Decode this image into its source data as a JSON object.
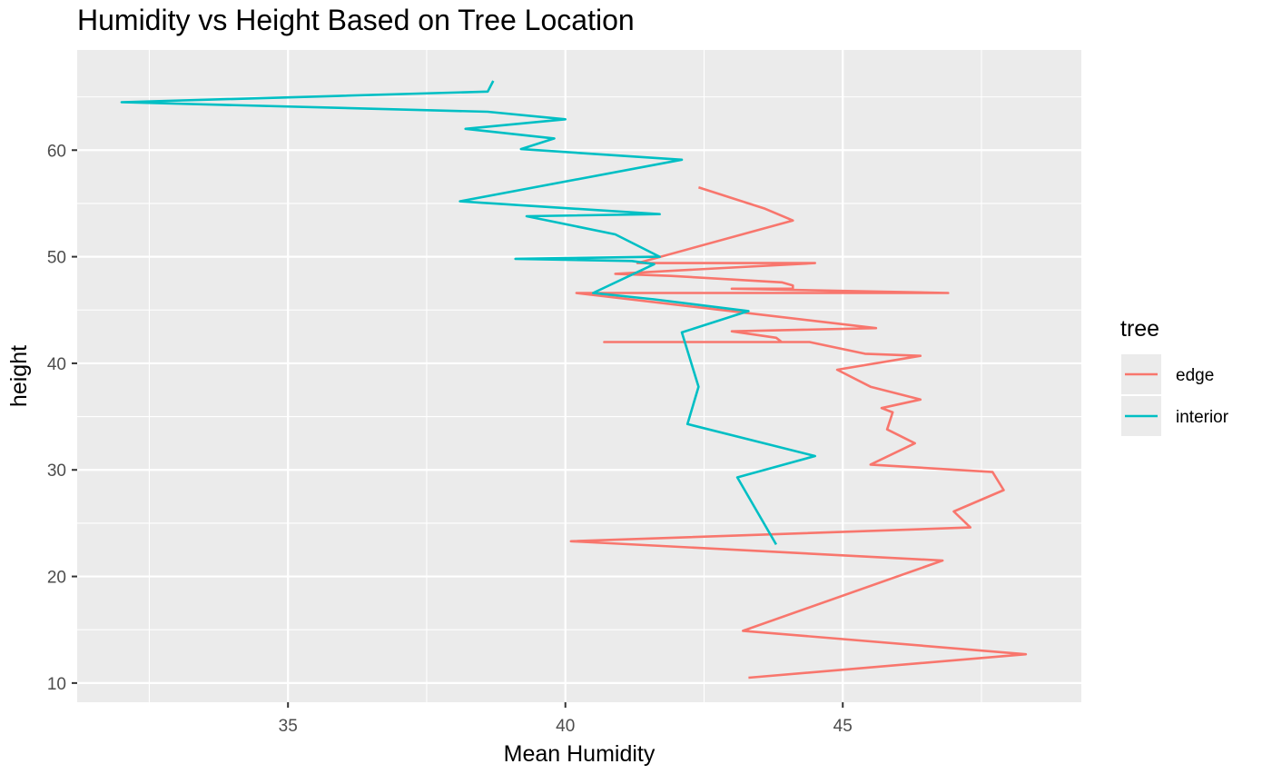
{
  "chart_data": {
    "type": "line",
    "title": "Humidity vs Height Based on Tree Location",
    "xlabel": "Mean Humidity",
    "ylabel": "height",
    "xlim": [
      31.2,
      49.3
    ],
    "ylim": [
      8.2,
      69.4
    ],
    "x_ticks": [
      35,
      40,
      45
    ],
    "x_tick_labels": [
      "35",
      "40",
      "45"
    ],
    "y_ticks": [
      10,
      20,
      30,
      40,
      50,
      60
    ],
    "y_tick_labels": [
      "10",
      "20",
      "30",
      "40",
      "50",
      "60"
    ],
    "grid": true,
    "legend": {
      "title": "tree",
      "placement": "right"
    },
    "series": [
      {
        "name": "edge",
        "color": "#F8766D",
        "points": [
          [
            43.3,
            10.5
          ],
          [
            48.3,
            12.7
          ],
          [
            43.2,
            14.9
          ],
          [
            46.8,
            21.5
          ],
          [
            40.1,
            23.3
          ],
          [
            47.3,
            24.6
          ],
          [
            47.0,
            26.1
          ],
          [
            47.9,
            28.1
          ],
          [
            47.7,
            29.8
          ],
          [
            45.5,
            30.5
          ],
          [
            46.3,
            32.5
          ],
          [
            45.8,
            33.8
          ],
          [
            45.9,
            35.4
          ],
          [
            45.7,
            35.8
          ],
          [
            46.4,
            36.6
          ],
          [
            45.5,
            37.8
          ],
          [
            44.9,
            39.4
          ],
          [
            46.4,
            40.7
          ],
          [
            45.4,
            40.9
          ],
          [
            44.4,
            42.0
          ],
          [
            40.7,
            42.0
          ],
          [
            43.9,
            42.0
          ],
          [
            43.8,
            42.4
          ],
          [
            43.0,
            43.0
          ],
          [
            45.6,
            43.3
          ],
          [
            40.2,
            46.6
          ],
          [
            46.9,
            46.6
          ],
          [
            43.0,
            47.0
          ],
          [
            44.1,
            47.0
          ],
          [
            44.1,
            47.3
          ],
          [
            43.9,
            47.6
          ],
          [
            41.9,
            48.2
          ],
          [
            40.9,
            48.4
          ],
          [
            44.5,
            49.4
          ],
          [
            41.3,
            49.4
          ],
          [
            44.1,
            53.4
          ],
          [
            43.6,
            54.5
          ],
          [
            42.4,
            56.5
          ]
        ]
      },
      {
        "name": "interior",
        "color": "#00BFC4",
        "points": [
          [
            43.8,
            23.0
          ],
          [
            43.1,
            29.3
          ],
          [
            44.5,
            31.3
          ],
          [
            42.2,
            34.3
          ],
          [
            42.4,
            37.8
          ],
          [
            42.1,
            42.9
          ],
          [
            43.3,
            44.9
          ],
          [
            41.6,
            46.0
          ],
          [
            40.5,
            46.6
          ],
          [
            41.6,
            49.3
          ],
          [
            41.2,
            49.6
          ],
          [
            39.1,
            49.8
          ],
          [
            41.7,
            50.0
          ],
          [
            40.9,
            52.1
          ],
          [
            39.3,
            53.8
          ],
          [
            41.7,
            54.0
          ],
          [
            38.1,
            55.2
          ],
          [
            42.1,
            59.1
          ],
          [
            39.2,
            60.1
          ],
          [
            39.8,
            61.1
          ],
          [
            38.2,
            62.0
          ],
          [
            40.0,
            62.9
          ],
          [
            38.6,
            63.6
          ],
          [
            32.0,
            64.5
          ],
          [
            38.6,
            65.5
          ],
          [
            38.7,
            66.5
          ]
        ]
      }
    ]
  }
}
